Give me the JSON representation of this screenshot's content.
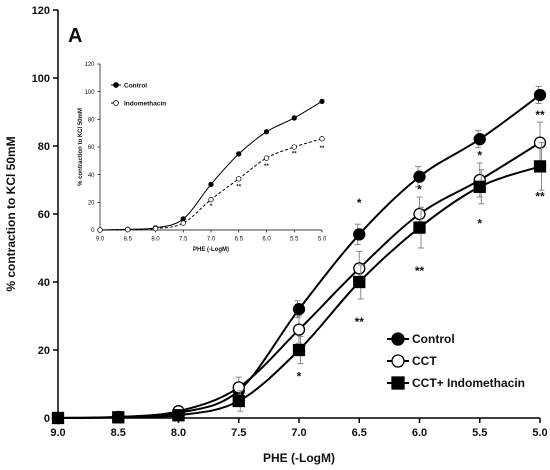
{
  "panel_label": "A",
  "chart_data": [
    {
      "type": "line",
      "xlabel": "PHE (-LogM)",
      "ylabel": "% contraction to KCl 50mM",
      "x": [
        9.0,
        8.5,
        8.0,
        7.5,
        7.0,
        6.5,
        6.0,
        5.5,
        5.0
      ],
      "x_ticks": [
        "9.0",
        "8.5",
        "8.0",
        "7.5",
        "7.0",
        "6.5",
        "6.0",
        "5.5",
        "5.0"
      ],
      "y_ticks": [
        "0",
        "20",
        "40",
        "60",
        "80",
        "100",
        "120"
      ],
      "xlim": [
        9.0,
        5.0
      ],
      "ylim": [
        0,
        120
      ],
      "legend_position": "bottom-right",
      "series": [
        {
          "name": "Control",
          "marker": "filled-circle",
          "color": "#000000",
          "values": [
            0,
            0.3,
            1.5,
            8,
            32,
            54,
            71,
            82,
            95
          ],
          "errors": [
            0,
            0.5,
            1,
            2,
            2.5,
            3,
            3,
            2.5,
            2.5
          ]
        },
        {
          "name": "CCT",
          "marker": "open-circle",
          "color": "#000000",
          "values": [
            0,
            0.3,
            2,
            9,
            26,
            44,
            60,
            70,
            81
          ],
          "errors": [
            0,
            0.5,
            1,
            3,
            4,
            5,
            5,
            5,
            6
          ]
        },
        {
          "name": "CCT+ Indomethacin",
          "marker": "filled-square",
          "color": "#000000",
          "values": [
            0,
            0.2,
            0.8,
            5,
            20,
            40,
            56,
            68,
            74
          ],
          "errors": [
            0,
            0.5,
            1,
            3,
            4,
            5,
            6,
            5,
            7
          ]
        }
      ],
      "annotations": [
        {
          "x": 7.0,
          "text": "*",
          "y": 11
        },
        {
          "x": 6.5,
          "text": "*",
          "y": 62
        },
        {
          "x": 6.5,
          "text": "**",
          "y": 27
        },
        {
          "x": 6.0,
          "text": "*",
          "y": 66
        },
        {
          "x": 6.0,
          "text": "**",
          "y": 42
        },
        {
          "x": 5.5,
          "text": "*",
          "y": 76
        },
        {
          "x": 5.5,
          "text": "*",
          "y": 56
        },
        {
          "x": 5.0,
          "text": "**",
          "y": 88
        },
        {
          "x": 5.0,
          "text": "**",
          "y": 64
        }
      ]
    },
    {
      "type": "line",
      "xlabel": "PHE (-LogM)",
      "ylabel": "% contraction to KCl 50mM",
      "x": [
        9.0,
        8.5,
        8.0,
        7.5,
        7.0,
        6.5,
        6.0,
        5.5,
        5.0
      ],
      "x_ticks": [
        "9.0",
        "8.5",
        "8.0",
        "7.5",
        "7.0",
        "6.5",
        "6.0",
        "5.5",
        "5.0"
      ],
      "y_ticks": [
        "0",
        "20",
        "40",
        "60",
        "80",
        "100",
        "120"
      ],
      "xlim": [
        9.0,
        5.0
      ],
      "ylim": [
        0,
        120
      ],
      "legend_position": "top-left",
      "series": [
        {
          "name": "Control",
          "marker": "filled-circle",
          "line": "solid",
          "color": "#000000",
          "values": [
            0,
            0.5,
            1.5,
            8,
            33,
            55,
            71,
            81,
            93
          ]
        },
        {
          "name": "Indomethacin",
          "marker": "open-circle",
          "line": "dashed",
          "color": "#000000",
          "values": [
            0,
            0.3,
            1,
            5,
            22,
            37,
            52,
            60,
            66
          ]
        }
      ],
      "annotations": [
        {
          "x": 7.0,
          "text": "*",
          "y": 16
        },
        {
          "x": 6.5,
          "text": "**",
          "y": 30
        },
        {
          "x": 6.0,
          "text": "**",
          "y": 45
        },
        {
          "x": 5.5,
          "text": "**",
          "y": 54
        },
        {
          "x": 5.0,
          "text": "**",
          "y": 58
        }
      ]
    }
  ]
}
